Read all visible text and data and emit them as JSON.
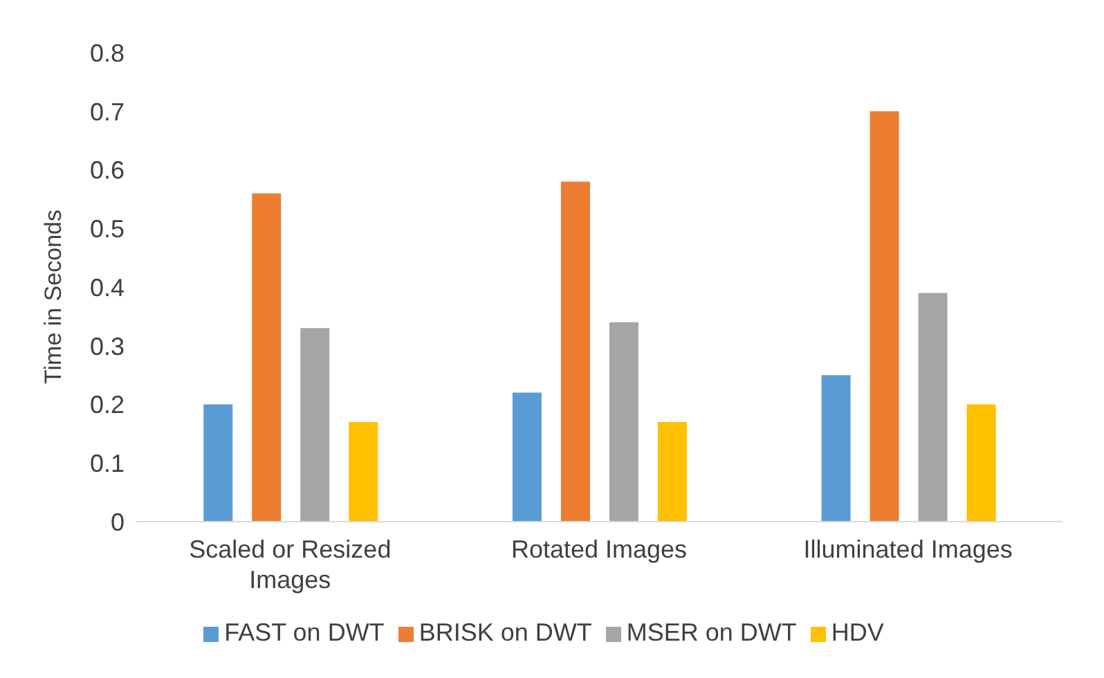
{
  "chart_data": {
    "type": "bar",
    "ylabel": "Time in Seconds",
    "categories": [
      "Scaled or Resized Images",
      "Rotated Images",
      "Illuminated Images"
    ],
    "series": [
      {
        "name": "FAST on DWT",
        "color": "#5b9bd5",
        "values": [
          0.2,
          0.22,
          0.25
        ]
      },
      {
        "name": "BRISK on DWT",
        "color": "#ed7d31",
        "values": [
          0.56,
          0.58,
          0.7
        ]
      },
      {
        "name": "MSER on DWT",
        "color": "#a5a5a5",
        "values": [
          0.33,
          0.34,
          0.39
        ]
      },
      {
        "name": "HDV",
        "color": "#ffc000",
        "values": [
          0.17,
          0.17,
          0.2
        ]
      }
    ],
    "ylim": [
      0,
      0.8
    ],
    "yticks": [
      0,
      0.1,
      0.2,
      0.3,
      0.4,
      0.5,
      0.6,
      0.7,
      0.8
    ],
    "legend": "bottom"
  }
}
